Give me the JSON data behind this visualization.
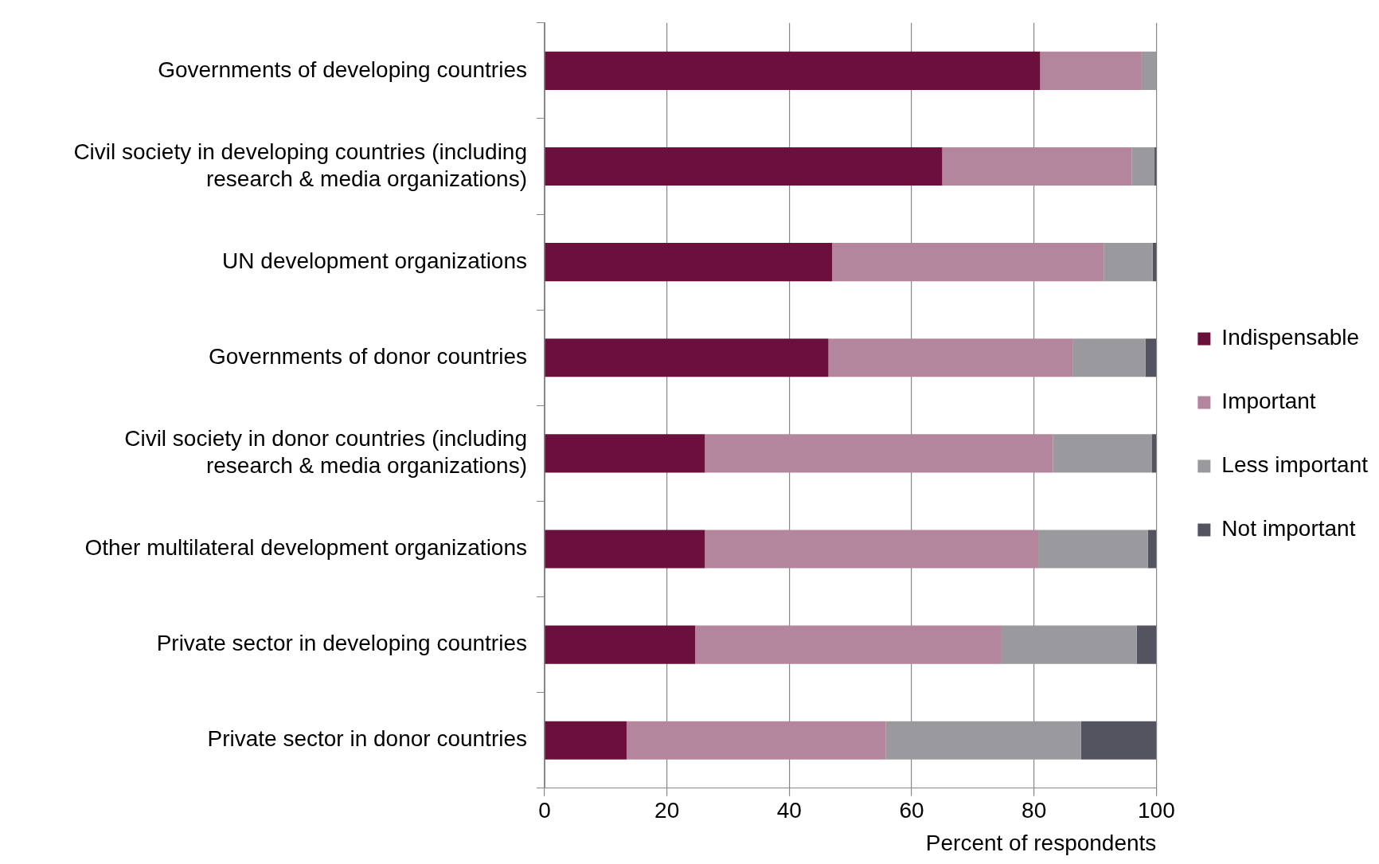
{
  "chart_data": {
    "type": "bar",
    "orientation": "horizontal",
    "stacked": true,
    "xlabel": "Percent of respondents",
    "categories": [
      "Governments of developing countries",
      "Civil society in developing countries (including research & media organizations)",
      "UN development organizations",
      "Governments of donor countries",
      "Civil society in donor countries (including research & media organizations)",
      "Other multilateral development organizations",
      "Private sector in developing countries",
      "Private sector in donor countries"
    ],
    "series": [
      {
        "name": "Indispensable",
        "color": "#6b0f3c",
        "values": [
          81,
          65,
          47,
          46.4,
          26.2,
          26.2,
          24.6,
          13.4
        ]
      },
      {
        "name": "Important",
        "color": "#b3869d",
        "values": [
          16.6,
          31,
          44.4,
          40,
          56.9,
          54.5,
          50.1,
          42.4
        ]
      },
      {
        "name": "Less important",
        "color": "#9a999e",
        "values": [
          2.4,
          3.7,
          8,
          11.8,
          16.2,
          17.9,
          22.1,
          31.9
        ]
      },
      {
        "name": "Not important",
        "color": "#545360",
        "values": [
          0,
          0.4,
          0.7,
          1.8,
          0.7,
          1.4,
          3.2,
          12.3
        ]
      }
    ],
    "xlim": [
      0,
      100
    ],
    "xticks": [
      0,
      20,
      40,
      60,
      80,
      100
    ],
    "grid": "x",
    "legend": "right"
  }
}
